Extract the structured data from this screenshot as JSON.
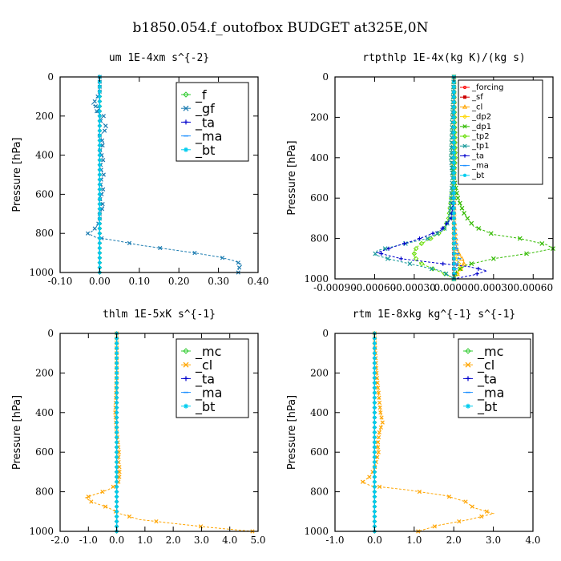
{
  "figure": {
    "title": "b1850.054.f_outofbox  BUDGET at325E,0N"
  },
  "colors": {
    "forcing": "#ff0000",
    "sf": "#cc0000",
    "cl": "#ffa500",
    "dp2": "#ffd700",
    "dp1": "#33bb00",
    "tp2": "#66dd00",
    "tp1": "#1a9b9b",
    "ta": "#0000cc",
    "ma": "#1e90ff",
    "bt": "#00ccee",
    "f": "#33cc33",
    "gf": "#1a7bb0",
    "mc": "#33cc33"
  },
  "chart_data": [
    {
      "type": "line",
      "title": "um  1E-4xm s^{-2}",
      "ylabel": "Pressure [hPa]",
      "xlim": [
        -0.1,
        0.4
      ],
      "ylim": [
        1000,
        0
      ],
      "xticks": [
        "-0.10",
        "0.00",
        "0.10",
        "0.20",
        "0.30",
        "0.40"
      ],
      "xtick_values": [
        -0.1,
        0.0,
        0.1,
        0.2,
        0.3,
        0.4
      ],
      "yticks": [
        "0",
        "200",
        "400",
        "600",
        "800",
        "1000"
      ],
      "ytick_values": [
        0,
        200,
        400,
        600,
        800,
        1000
      ],
      "legend": {
        "position": "top-right",
        "size": "large"
      },
      "series": [
        {
          "name": "_f",
          "color_key": "f",
          "marker": "diamond",
          "p": [
            0,
            1000
          ],
          "x": [
            0.0,
            0.0
          ]
        },
        {
          "name": "_gf",
          "color_key": "gf",
          "marker": "x",
          "p": [
            80,
            120,
            140,
            160,
            180,
            200,
            220,
            260,
            300,
            340,
            380,
            420,
            460,
            500,
            540,
            580,
            620,
            660,
            700,
            740,
            770,
            790,
            800,
            820,
            840,
            860,
            880,
            900,
            920,
            940,
            960,
            980,
            1000
          ],
          "x": [
            0.0,
            -0.01,
            -0.02,
            0.0,
            -0.01,
            0.01,
            0.0,
            0.02,
            0.0,
            0.01,
            0.0,
            0.01,
            0.0,
            0.01,
            0.0,
            0.01,
            0.0,
            0.01,
            0.0,
            0.0,
            -0.01,
            -0.02,
            -0.03,
            -0.01,
            0.05,
            0.1,
            0.17,
            0.24,
            0.3,
            0.34,
            0.36,
            0.35,
            0.35
          ]
        },
        {
          "name": "_ta",
          "color_key": "ta",
          "marker": "plus",
          "p": [
            0,
            1000
          ],
          "x": [
            0.0,
            0.0
          ]
        },
        {
          "name": "_ma",
          "color_key": "ma",
          "marker": "dash",
          "p": [
            0,
            1000
          ],
          "x": [
            0.0,
            0.0
          ]
        },
        {
          "name": "_bt",
          "color_key": "bt",
          "marker": "star",
          "p": [
            0,
            1000
          ],
          "x": [
            0.0,
            0.0
          ]
        }
      ]
    },
    {
      "type": "line",
      "title": "rtpthlp  1E-4x(kg K)/(kg s)",
      "ylabel": "Pressure [hPa]",
      "xlim": [
        -0.0009,
        0.00075
      ],
      "ylim": [
        1000,
        0
      ],
      "xticks": [
        "-0.00090",
        "-0.00060",
        "-0.00030",
        "0.00000",
        "0.00030",
        "0.00060"
      ],
      "xtick_values": [
        -0.0009,
        -0.0006,
        -0.0003,
        0.0,
        0.0003,
        0.0006
      ],
      "yticks": [
        "0",
        "200",
        "400",
        "600",
        "800",
        "1000"
      ],
      "ytick_values": [
        0,
        200,
        400,
        600,
        800,
        1000
      ],
      "legend": {
        "position": "top-right",
        "size": "small"
      },
      "series": [
        {
          "name": "_forcing",
          "color_key": "forcing",
          "marker": "circle",
          "p": [
            0,
            1000
          ],
          "x": [
            0.0,
            0.0
          ]
        },
        {
          "name": "_sf",
          "color_key": "sf",
          "marker": "square",
          "p": [
            0,
            1000
          ],
          "x": [
            0.0,
            0.0
          ]
        },
        {
          "name": "_cl",
          "color_key": "cl",
          "marker": "triangle",
          "p": [
            0,
            700,
            850,
            880,
            900,
            920,
            940,
            960,
            980,
            1000
          ],
          "x": [
            0.0,
            0.0,
            2e-05,
            4e-05,
            6e-05,
            8e-05,
            6e-05,
            4e-05,
            2e-05,
            0.0
          ]
        },
        {
          "name": "_dp2",
          "color_key": "dp2",
          "marker": "diamond",
          "p": [
            0,
            860,
            900,
            930,
            950,
            970,
            990,
            1000
          ],
          "x": [
            0.0,
            0.0,
            2e-05,
            4e-05,
            5e-05,
            3e-05,
            1e-05,
            0.0
          ]
        },
        {
          "name": "_dp1",
          "color_key": "dp1",
          "marker": "x",
          "p": [
            0,
            400,
            500,
            600,
            680,
            740,
            780,
            800,
            830,
            850,
            870,
            900,
            930,
            960,
            990,
            1000
          ],
          "x": [
            0.0,
            -2e-05,
            0.0,
            3e-05,
            8e-05,
            0.00015,
            0.0003,
            0.0005,
            0.0007,
            0.00075,
            0.0006,
            0.0003,
            0.0001,
            2e-05,
            0.0,
            0.0
          ]
        },
        {
          "name": "_tp2",
          "color_key": "tp2",
          "marker": "diamond",
          "p": [
            0,
            400,
            500,
            600,
            700,
            760,
            790,
            810,
            830,
            860,
            890,
            920,
            950,
            980,
            1000
          ],
          "x": [
            0.0,
            1e-05,
            0.0,
            -2e-05,
            -4e-05,
            -8e-05,
            -0.00015,
            -0.0002,
            -0.00026,
            -0.0003,
            -0.0003,
            -0.00026,
            -0.00016,
            -5e-05,
            0.0
          ]
        },
        {
          "name": "_tp1",
          "color_key": "tp1",
          "marker": "x",
          "p": [
            0,
            400,
            500,
            600,
            700,
            760,
            800,
            830,
            860,
            880,
            900,
            930,
            960,
            990,
            1000
          ],
          "x": [
            0.0,
            -2e-05,
            -1e-05,
            -2e-05,
            -3e-05,
            -8e-05,
            -0.0002,
            -0.0004,
            -0.00058,
            -0.0006,
            -0.0005,
            -0.0003,
            -0.0001,
            -2e-05,
            0.0
          ]
        },
        {
          "name": "_ta",
          "color_key": "ta",
          "marker": "plus",
          "p": [
            0,
            600,
            700,
            760,
            790,
            810,
            840,
            870,
            900,
            920,
            940,
            960,
            980,
            1000
          ],
          "x": [
            0.0,
            0.0,
            -2e-05,
            -0.0001,
            -0.00022,
            -0.0003,
            -0.00045,
            -0.00058,
            -0.0004,
            -0.00015,
            0.00012,
            0.00025,
            0.00015,
            0.0
          ]
        },
        {
          "name": "_ma",
          "color_key": "ma",
          "marker": "dash",
          "p": [
            0,
            700,
            800,
            850,
            880,
            900,
            930,
            960,
            1000
          ],
          "x": [
            0.0,
            0.0,
            1e-05,
            2e-05,
            3e-05,
            4e-05,
            2e-05,
            1e-05,
            0.0
          ]
        },
        {
          "name": "_bt",
          "color_key": "bt",
          "marker": "star",
          "p": [
            0,
            1000
          ],
          "x": [
            0.0,
            0.0
          ]
        }
      ]
    },
    {
      "type": "line",
      "title": "thlm  1E-5xK s^{-1}",
      "ylabel": "Pressure [hPa]",
      "xlim": [
        -2.0,
        5.0
      ],
      "ylim": [
        1000,
        0
      ],
      "xticks": [
        "-2.0",
        "-1.0",
        "0.0",
        "1.0",
        "2.0",
        "3.0",
        "4.0",
        "5.0"
      ],
      "xtick_values": [
        -2.0,
        -1.0,
        0.0,
        1.0,
        2.0,
        3.0,
        4.0,
        5.0
      ],
      "yticks": [
        "0",
        "200",
        "400",
        "600",
        "800",
        "1000"
      ],
      "ytick_values": [
        0,
        200,
        400,
        600,
        800,
        1000
      ],
      "legend": {
        "position": "top-right",
        "size": "large"
      },
      "series": [
        {
          "name": "_mc",
          "color_key": "mc",
          "marker": "diamond",
          "p": [
            0,
            1000
          ],
          "x": [
            0.0,
            0.0
          ]
        },
        {
          "name": "_cl",
          "color_key": "cl",
          "marker": "x",
          "p": [
            0,
            100,
            200,
            300,
            400,
            500,
            560,
            600,
            640,
            680,
            720,
            760,
            790,
            810,
            830,
            850,
            880,
            910,
            940,
            960,
            980,
            1000
          ],
          "x": [
            0.0,
            0.0,
            0.0,
            -0.02,
            -0.05,
            0.0,
            0.05,
            0.08,
            0.06,
            0.1,
            0.1,
            0.05,
            -0.3,
            -0.7,
            -1.1,
            -0.9,
            -0.3,
            0.1,
            0.8,
            2.0,
            3.3,
            4.8
          ]
        },
        {
          "name": "_ta",
          "color_key": "ta",
          "marker": "plus",
          "p": [
            0,
            1000
          ],
          "x": [
            0.0,
            0.0
          ]
        },
        {
          "name": "_ma",
          "color_key": "ma",
          "marker": "dash",
          "p": [
            0,
            1000
          ],
          "x": [
            0.0,
            0.0
          ]
        },
        {
          "name": "_bt",
          "color_key": "bt",
          "marker": "star",
          "p": [
            0,
            1000
          ],
          "x": [
            0.0,
            0.0
          ]
        }
      ]
    },
    {
      "type": "line",
      "title": "rtm  1E-8xkg kg^{-1} s^{-1}",
      "ylabel": "Pressure [hPa]",
      "xlim": [
        -1.0,
        4.0
      ],
      "ylim": [
        1000,
        0
      ],
      "xticks": [
        "-1.0",
        "0.0",
        "1.0",
        "2.0",
        "3.0",
        "4.0"
      ],
      "xtick_values": [
        -1.0,
        0.0,
        1.0,
        2.0,
        3.0,
        4.0
      ],
      "yticks": [
        "0",
        "200",
        "400",
        "600",
        "800",
        "1000"
      ],
      "ytick_values": [
        0,
        200,
        400,
        600,
        800,
        1000
      ],
      "legend": {
        "position": "top-right",
        "size": "large"
      },
      "series": [
        {
          "name": "_mc",
          "color_key": "mc",
          "marker": "diamond",
          "p": [
            0,
            1000
          ],
          "x": [
            0.0,
            0.0
          ]
        },
        {
          "name": "_cl",
          "color_key": "cl",
          "marker": "x",
          "p": [
            0,
            100,
            200,
            300,
            400,
            450,
            500,
            560,
            600,
            640,
            680,
            720,
            750,
            770,
            790,
            820,
            850,
            880,
            910,
            940,
            970,
            1000
          ],
          "x": [
            0.0,
            0.02,
            0.05,
            0.1,
            0.15,
            0.2,
            0.12,
            0.08,
            0.1,
            0.05,
            0.0,
            -0.1,
            -0.3,
            -0.1,
            0.8,
            1.8,
            2.3,
            2.5,
            3.0,
            2.4,
            1.6,
            1.1
          ]
        },
        {
          "name": "_ta",
          "color_key": "ta",
          "marker": "plus",
          "p": [
            0,
            1000
          ],
          "x": [
            0.0,
            0.0
          ]
        },
        {
          "name": "_ma",
          "color_key": "ma",
          "marker": "dash",
          "p": [
            0,
            1000
          ],
          "x": [
            0.0,
            0.0
          ]
        },
        {
          "name": "_bt",
          "color_key": "bt",
          "marker": "star",
          "p": [
            0,
            1000
          ],
          "x": [
            0.0,
            0.0
          ]
        }
      ]
    }
  ]
}
